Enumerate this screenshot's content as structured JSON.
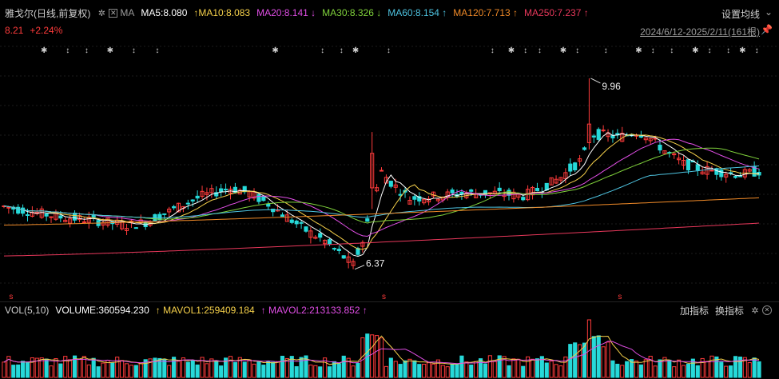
{
  "header": {
    "stock_label": "雅戈尔(日线,前复权)",
    "ma_label": "MA",
    "ma5": "MA5:8.080",
    "ma10": "MA10:8.083",
    "ma20": "MA20:8.141",
    "ma30": "MA30:8.326",
    "ma60": "MA60:8.154",
    "ma120": "MA120:7.713",
    "ma250": "MA250:7.237",
    "settings_button": "设置均线",
    "last_price": "8.21",
    "change_pct": "+2.24%",
    "date_range": "2024/6/12-2025/2/11(161根)"
  },
  "volume_header": {
    "vol_label": "VOL(5,10)",
    "volume": "VOLUME:360594.230",
    "mavol1": "MAVOL1:259409.184",
    "mavol2": "MAVOL2:213133.852",
    "add_indicator": "加指标",
    "switch_indicator": "换指标"
  },
  "colors": {
    "up": "#ff3b3b",
    "down": "#26d9d9",
    "ma5": "#ffffff",
    "ma10": "#f5d04a",
    "ma20": "#e14ee6",
    "ma30": "#7fd13b",
    "ma60": "#4ec3e0",
    "ma120": "#f08a28",
    "ma250": "#e8385b"
  },
  "chart_data": {
    "type": "candlestick",
    "price_annotations": {
      "high": "9.96",
      "low": "6.37"
    },
    "price_range": [
      6.2,
      10.2
    ],
    "price_anchors": [
      [
        0,
        7.55
      ],
      [
        6,
        7.45
      ],
      [
        12,
        7.35
      ],
      [
        18,
        7.3
      ],
      [
        22,
        7.25
      ],
      [
        26,
        7.2
      ],
      [
        30,
        7.25
      ],
      [
        36,
        7.5
      ],
      [
        42,
        7.75
      ],
      [
        48,
        7.9
      ],
      [
        52,
        7.8
      ],
      [
        56,
        7.6
      ],
      [
        60,
        7.35
      ],
      [
        64,
        7.1
      ],
      [
        68,
        6.9
      ],
      [
        72,
        6.6
      ],
      [
        74,
        6.45
      ],
      [
        76,
        6.9
      ],
      [
        78,
        7.6
      ],
      [
        80,
        8.2
      ],
      [
        82,
        8.0
      ],
      [
        86,
        7.7
      ],
      [
        92,
        7.75
      ],
      [
        98,
        7.8
      ],
      [
        104,
        7.8
      ],
      [
        110,
        7.75
      ],
      [
        114,
        7.9
      ],
      [
        118,
        8.1
      ],
      [
        122,
        8.4
      ],
      [
        124,
        8.7
      ],
      [
        125,
        8.9
      ],
      [
        128,
        8.9
      ],
      [
        130,
        8.85
      ],
      [
        134,
        8.95
      ],
      [
        136,
        8.9
      ],
      [
        140,
        8.6
      ],
      [
        144,
        8.35
      ],
      [
        148,
        8.25
      ],
      [
        152,
        8.2
      ],
      [
        156,
        8.15
      ],
      [
        160,
        8.21
      ]
    ],
    "ma_final_values": {
      "MA5": 8.08,
      "MA10": 8.083,
      "MA20": 8.141,
      "MA30": 8.326,
      "MA60": 8.154,
      "MA120": 7.713,
      "MA250": 7.237
    },
    "bar_count": 161,
    "volume_peak_index": 124
  }
}
